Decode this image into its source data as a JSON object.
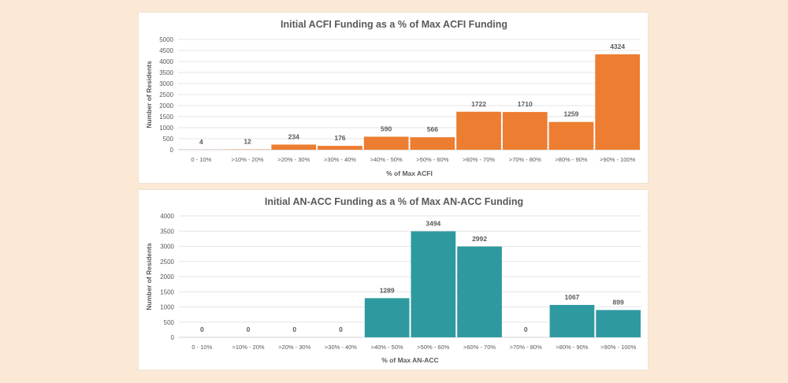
{
  "chart_data": [
    {
      "type": "bar",
      "title": "Initial ACFI Funding as a % of Max ACFI Funding",
      "xlabel": "% of Max ACFI",
      "ylabel": "Number of Residents",
      "categories": [
        "0 - 10%",
        ">10% - 20%",
        ">20% - 30%",
        ">30% - 40%",
        ">40% - 50%",
        ">50% - 60%",
        ">60% - 70%",
        ">70% - 80%",
        ">80% - 90%",
        ">90% - 100%"
      ],
      "values": [
        4,
        12,
        234,
        176,
        590,
        566,
        1722,
        1710,
        1259,
        4324
      ],
      "ylim": [
        0,
        5000
      ],
      "yticks": [
        0,
        500,
        1000,
        1500,
        2000,
        2500,
        3000,
        3500,
        4000,
        4500,
        5000
      ],
      "grid": true,
      "color": "#ed7d31"
    },
    {
      "type": "bar",
      "title": "Initial AN-ACC Funding as a % of Max AN-ACC Funding",
      "xlabel": "% of Max AN-ACC",
      "ylabel": "Number of Residents",
      "categories": [
        "0 - 10%",
        ">10% - 20%",
        ">20% - 30%",
        ">30% - 40%",
        ">40% - 50%",
        ">50% - 60%",
        ">60% - 70%",
        ">70% - 80%",
        ">80% - 90%",
        ">90% - 100%"
      ],
      "values": [
        0,
        0,
        0,
        0,
        1289,
        3494,
        2992,
        0,
        1067,
        899
      ],
      "ylim": [
        0,
        4000
      ],
      "yticks": [
        0,
        500,
        1000,
        1500,
        2000,
        2500,
        3000,
        3500,
        4000
      ],
      "grid": true,
      "color": "#2e9aa0"
    }
  ]
}
